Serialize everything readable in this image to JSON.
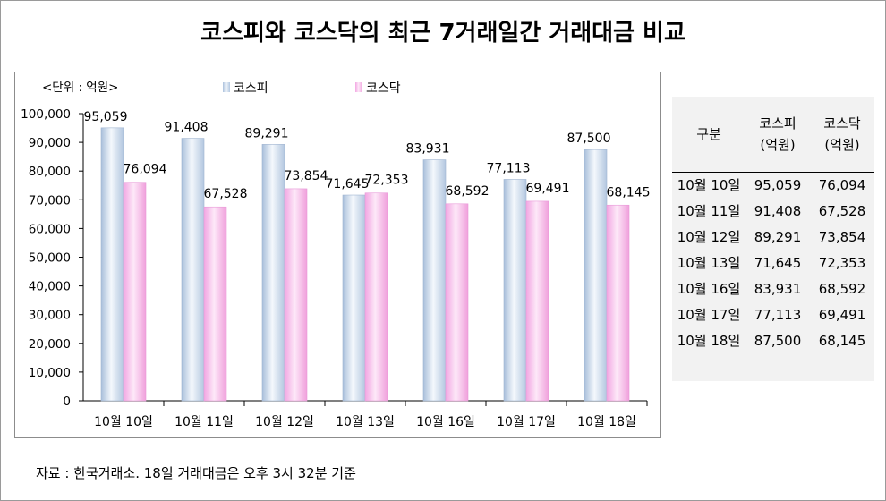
{
  "title": "코스피와 코스닥의 최근 7거래일간 거래대금 비교",
  "unit_label": "<단위 : 억원>",
  "chart_data": {
    "type": "bar",
    "categories": [
      "10월 10일",
      "10월 11일",
      "10월 12일",
      "10월 13일",
      "10월 16일",
      "10월 17일",
      "10월 18일"
    ],
    "series": [
      {
        "name": "코스피",
        "values": [
          95059,
          91408,
          89291,
          71645,
          83931,
          77113,
          87500
        ],
        "color": "#c8d8ec"
      },
      {
        "name": "코스닥",
        "values": [
          76094,
          67528,
          73854,
          72353,
          68592,
          69491,
          68145
        ],
        "color": "#f0b8e6"
      }
    ],
    "data_labels": {
      "코스피": [
        "95,059",
        "91,408",
        "89,291",
        "71,645",
        "83,931",
        "77,113",
        "87,500"
      ],
      "코스닥": [
        "76,094",
        "67,528",
        "73,854",
        "72,353",
        "68,592",
        "69,491",
        "68,145"
      ]
    },
    "ylim": [
      0,
      100000
    ],
    "yticks": [
      "0",
      "10,000",
      "20,000",
      "30,000",
      "40,000",
      "50,000",
      "60,000",
      "70,000",
      "80,000",
      "90,000",
      "100,000"
    ],
    "legend": "top",
    "grid": false
  },
  "table": {
    "header_label": "구분",
    "header_kospi": [
      "코스피",
      "(억원)"
    ],
    "header_kosdaq": [
      "코스닥",
      "(억원)"
    ],
    "rows": [
      [
        "10월 10일",
        "95,059",
        "76,094"
      ],
      [
        "10월 11일",
        "91,408",
        "67,528"
      ],
      [
        "10월 12일",
        "89,291",
        "73,854"
      ],
      [
        "10월 13일",
        "71,645",
        "72,353"
      ],
      [
        "10월 16일",
        "83,931",
        "68,592"
      ],
      [
        "10월 17일",
        "77,113",
        "69,491"
      ],
      [
        "10월 18일",
        "87,500",
        "68,145"
      ]
    ]
  },
  "footnote": "자료 : 한국거래소. 18일 거래대금은 오후 3시 32분 기준"
}
